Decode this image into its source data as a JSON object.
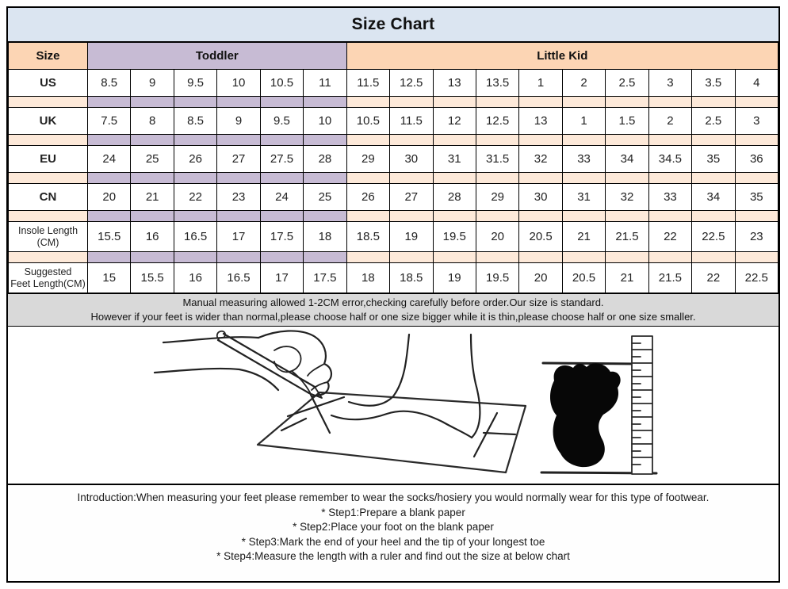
{
  "title": "Size Chart",
  "colors": {
    "title_bg": "#dbe5f1",
    "peach": "#fcd5b4",
    "peach_light": "#fde9d9",
    "lavender": "#c7bbd4",
    "notice_bg": "#d9d9d9",
    "border": "#000000"
  },
  "size_table": {
    "corner_label": "Size",
    "groups": [
      {
        "label": "Toddler",
        "span": 6
      },
      {
        "label": "Little Kid",
        "span": 10
      }
    ],
    "rows": [
      {
        "label_lines": [
          "US"
        ],
        "values": [
          "8.5",
          "9",
          "9.5",
          "10",
          "10.5",
          "11",
          "11.5",
          "12.5",
          "13",
          "13.5",
          "1",
          "2",
          "2.5",
          "3",
          "3.5",
          "4"
        ]
      },
      {
        "label_lines": [
          "UK"
        ],
        "values": [
          "7.5",
          "8",
          "8.5",
          "9",
          "9.5",
          "10",
          "10.5",
          "11.5",
          "12",
          "12.5",
          "13",
          "1",
          "1.5",
          "2",
          "2.5",
          "3"
        ]
      },
      {
        "label_lines": [
          "EU"
        ],
        "values": [
          "24",
          "25",
          "26",
          "27",
          "27.5",
          "28",
          "29",
          "30",
          "31",
          "31.5",
          "32",
          "33",
          "34",
          "34.5",
          "35",
          "36"
        ]
      },
      {
        "label_lines": [
          "CN"
        ],
        "values": [
          "20",
          "21",
          "22",
          "23",
          "24",
          "25",
          "26",
          "27",
          "28",
          "29",
          "30",
          "31",
          "32",
          "33",
          "34",
          "35"
        ]
      },
      {
        "label_lines": [
          "Insole Length",
          "(CM)"
        ],
        "values": [
          "15.5",
          "16",
          "16.5",
          "17",
          "17.5",
          "18",
          "18.5",
          "19",
          "19.5",
          "20",
          "20.5",
          "21",
          "21.5",
          "22",
          "22.5",
          "23"
        ]
      },
      {
        "label_lines": [
          "Suggested",
          "Feet Length(CM)"
        ],
        "values": [
          "15",
          "15.5",
          "16",
          "16.5",
          "17",
          "17.5",
          "18",
          "18.5",
          "19",
          "19.5",
          "20",
          "20.5",
          "21",
          "21.5",
          "22",
          "22.5"
        ]
      }
    ]
  },
  "notice": {
    "line1": "Manual measuring allowed 1-2CM error,checking carefully before order.Our size is standard.",
    "line2": "However if your feet is wider than normal,please choose half or one size bigger while it is thin,please choose half or one size smaller."
  },
  "instructions": {
    "intro": "Introduction:When measuring your feet please remember to wear the socks/hosiery you would normally wear for this type of footwear.",
    "steps": [
      "* Step1:Prepare a blank paper",
      "* Step2:Place your foot on the blank paper",
      "* Step3:Mark the end of your heel and the tip of your longest toe",
      "* Step4:Measure the length with a ruler and find out the size at below chart"
    ]
  }
}
